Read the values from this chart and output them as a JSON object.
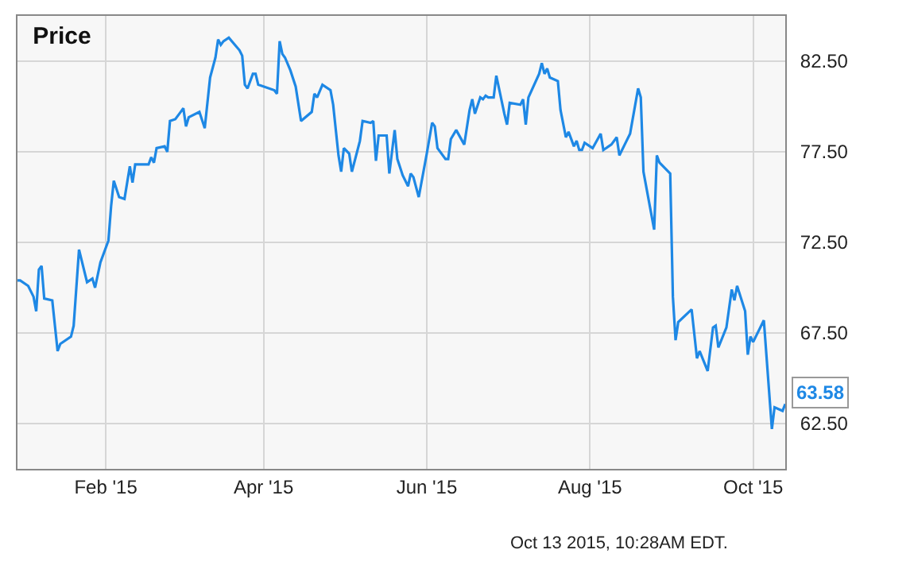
{
  "chart_data": {
    "type": "line",
    "title": "Price",
    "x": [
      "2014-12-30",
      "2014-12-31",
      "2015-01-03",
      "2015-01-05",
      "2015-01-06",
      "2015-01-07",
      "2015-01-08",
      "2015-01-09",
      "2015-01-12",
      "2015-01-13",
      "2015-01-14",
      "2015-01-15",
      "2015-01-19",
      "2015-01-20",
      "2015-01-22",
      "2015-01-25",
      "2015-01-27",
      "2015-01-28",
      "2015-01-30",
      "2015-02-02",
      "2015-02-03",
      "2015-02-04",
      "2015-02-06",
      "2015-02-08",
      "2015-02-10",
      "2015-02-11",
      "2015-02-12",
      "2015-02-17",
      "2015-02-18",
      "2015-02-19",
      "2015-02-20",
      "2015-02-23",
      "2015-02-24",
      "2015-02-25",
      "2015-02-27",
      "2015-03-01",
      "2015-03-02",
      "2015-03-03",
      "2015-03-04",
      "2015-03-08",
      "2015-03-10",
      "2015-03-12",
      "2015-03-14",
      "2015-03-15",
      "2015-03-16",
      "2015-03-17",
      "2015-03-19",
      "2015-03-23",
      "2015-03-24",
      "2015-03-25",
      "2015-03-26",
      "2015-03-28",
      "2015-03-29",
      "2015-03-30",
      "2015-04-05",
      "2015-04-06",
      "2015-04-07",
      "2015-04-08",
      "2015-04-09",
      "2015-04-11",
      "2015-04-13",
      "2015-04-15",
      "2015-04-19",
      "2015-04-20",
      "2015-04-21",
      "2015-04-23",
      "2015-04-26",
      "2015-04-27",
      "2015-04-29",
      "2015-04-30",
      "2015-05-01",
      "2015-05-03",
      "2015-05-04",
      "2015-05-07",
      "2015-05-08",
      "2015-05-11",
      "2015-05-12",
      "2015-05-13",
      "2015-05-14",
      "2015-05-17",
      "2015-05-18",
      "2015-05-20",
      "2015-05-21",
      "2015-05-23",
      "2015-05-25",
      "2015-05-26",
      "2015-05-27",
      "2015-05-29",
      "2015-06-01",
      "2015-06-03",
      "2015-06-04",
      "2015-06-05",
      "2015-06-08",
      "2015-06-09",
      "2015-06-10",
      "2015-06-12",
      "2015-06-15",
      "2015-06-17",
      "2015-06-18",
      "2015-06-19",
      "2015-06-21",
      "2015-06-22",
      "2015-06-23",
      "2015-06-24",
      "2015-06-26",
      "2015-06-27",
      "2015-06-30",
      "2015-07-01",
      "2015-07-02",
      "2015-07-06",
      "2015-07-07",
      "2015-07-08",
      "2015-07-09",
      "2015-07-13",
      "2015-07-14",
      "2015-07-15",
      "2015-07-16",
      "2015-07-17",
      "2015-07-20",
      "2015-07-21",
      "2015-07-23",
      "2015-07-24",
      "2015-07-26",
      "2015-07-27",
      "2015-07-28",
      "2015-07-29",
      "2015-07-30",
      "2015-08-02",
      "2015-08-05",
      "2015-08-06",
      "2015-08-09",
      "2015-08-11",
      "2015-08-12",
      "2015-08-14",
      "2015-08-16",
      "2015-08-19",
      "2015-08-20",
      "2015-08-21",
      "2015-08-25",
      "2015-08-26",
      "2015-08-27",
      "2015-08-31",
      "2015-09-01",
      "2015-09-02",
      "2015-09-03",
      "2015-09-08",
      "2015-09-10",
      "2015-09-11",
      "2015-09-14",
      "2015-09-16",
      "2015-09-17",
      "2015-09-18",
      "2015-09-21",
      "2015-09-23",
      "2015-09-24",
      "2015-09-25",
      "2015-09-28",
      "2015-09-29",
      "2015-09-30",
      "2015-10-01",
      "2015-10-05",
      "2015-10-08",
      "2015-10-09",
      "2015-10-12",
      "2015-10-13"
    ],
    "series": [
      {
        "color": "#1e88e5",
        "values": [
          70.4,
          70.4,
          70.1,
          69.5,
          68.7,
          71.0,
          71.2,
          69.4,
          69.3,
          67.9,
          66.5,
          66.9,
          67.3,
          67.9,
          72.1,
          70.3,
          70.5,
          70.0,
          71.4,
          72.6,
          74.5,
          75.9,
          75.0,
          74.9,
          76.7,
          75.8,
          76.8,
          76.8,
          77.2,
          76.9,
          77.7,
          77.8,
          77.5,
          79.2,
          79.3,
          79.7,
          79.9,
          78.9,
          79.4,
          79.7,
          78.8,
          81.6,
          82.7,
          83.7,
          83.4,
          83.6,
          83.8,
          83.1,
          82.8,
          81.2,
          81.0,
          81.8,
          81.8,
          81.2,
          80.9,
          80.7,
          83.6,
          82.9,
          82.7,
          82.0,
          81.1,
          79.2,
          79.7,
          80.7,
          80.5,
          81.2,
          80.9,
          80.1,
          77.3,
          76.4,
          77.7,
          77.4,
          76.4,
          78.1,
          79.2,
          79.1,
          79.2,
          77.0,
          78.4,
          78.4,
          76.3,
          78.7,
          77.1,
          76.2,
          75.6,
          76.3,
          76.1,
          75.0,
          77.4,
          79.1,
          78.9,
          77.7,
          77.1,
          77.1,
          78.2,
          78.7,
          77.9,
          79.8,
          80.4,
          79.6,
          80.5,
          80.4,
          80.6,
          80.5,
          80.5,
          81.7,
          79.6,
          79.0,
          80.2,
          80.1,
          80.4,
          79.0,
          80.5,
          81.8,
          82.4,
          81.8,
          82.1,
          81.6,
          81.4,
          79.8,
          78.3,
          78.6,
          77.8,
          78.1,
          77.6,
          77.6,
          78.0,
          77.7,
          78.5,
          77.6,
          77.9,
          78.3,
          77.3,
          77.9,
          78.5,
          81.0,
          80.5,
          76.4,
          73.2,
          77.3,
          76.9,
          76.3,
          69.5,
          67.1,
          68.1,
          68.8,
          66.1,
          66.5,
          65.4,
          67.8,
          67.9,
          66.7,
          67.8,
          69.9,
          69.3,
          70.1,
          68.7,
          66.3,
          67.3,
          67.0,
          68.2,
          62.2,
          63.4,
          63.2,
          63.58
        ]
      }
    ],
    "xlim": [
      "2014-12-30",
      "2015-10-13"
    ],
    "xticks": [
      {
        "value": "2015-02-01",
        "label": "Feb '15"
      },
      {
        "value": "2015-04-01",
        "label": "Apr '15"
      },
      {
        "value": "2015-06-01",
        "label": "Jun '15"
      },
      {
        "value": "2015-08-01",
        "label": "Aug '15"
      },
      {
        "value": "2015-10-01",
        "label": "Oct '15"
      }
    ],
    "ylim": [
      60,
      85
    ],
    "yticks": [
      {
        "value": 62.5,
        "label": "62.50"
      },
      {
        "value": 67.5,
        "label": "67.50"
      },
      {
        "value": 72.5,
        "label": "72.50"
      },
      {
        "value": 77.5,
        "label": "77.50"
      },
      {
        "value": 82.5,
        "label": "82.50"
      }
    ],
    "grid": true,
    "annotations": [
      {
        "text": "63.58",
        "x": "2015-10-13",
        "y": 63.58
      },
      "Oct 13 2015, 10:28AM EDT."
    ]
  }
}
